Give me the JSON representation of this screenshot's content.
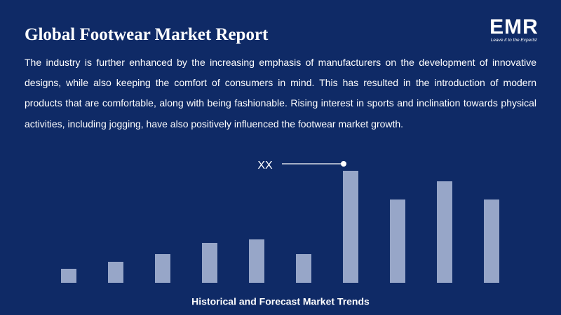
{
  "header": {
    "title": "Global Footwear Market Report",
    "logo": "EMR",
    "tagline": "Leave it to the Experts!"
  },
  "body": "The industry is further enhanced by the increasing emphasis of manufacturers on the development of innovative designs, while also keeping the comfort of consumers in mind. This has resulted in the introduction of modern products that are comfortable, along with being fashionable. Rising interest in sports and inclination towards physical activities, including jogging, have also positively influenced the footwear market growth.",
  "chart_data": {
    "type": "bar",
    "title": "Historical and Forecast Market Trends",
    "categories": [
      null,
      null,
      null,
      null,
      null,
      null,
      null,
      null,
      null,
      null
    ],
    "values": [
      20,
      30,
      41,
      57,
      62,
      41,
      160,
      119,
      145,
      119
    ],
    "color": "#97a6c8",
    "ylim": [
      0,
      160
    ],
    "annotation": "XX"
  }
}
